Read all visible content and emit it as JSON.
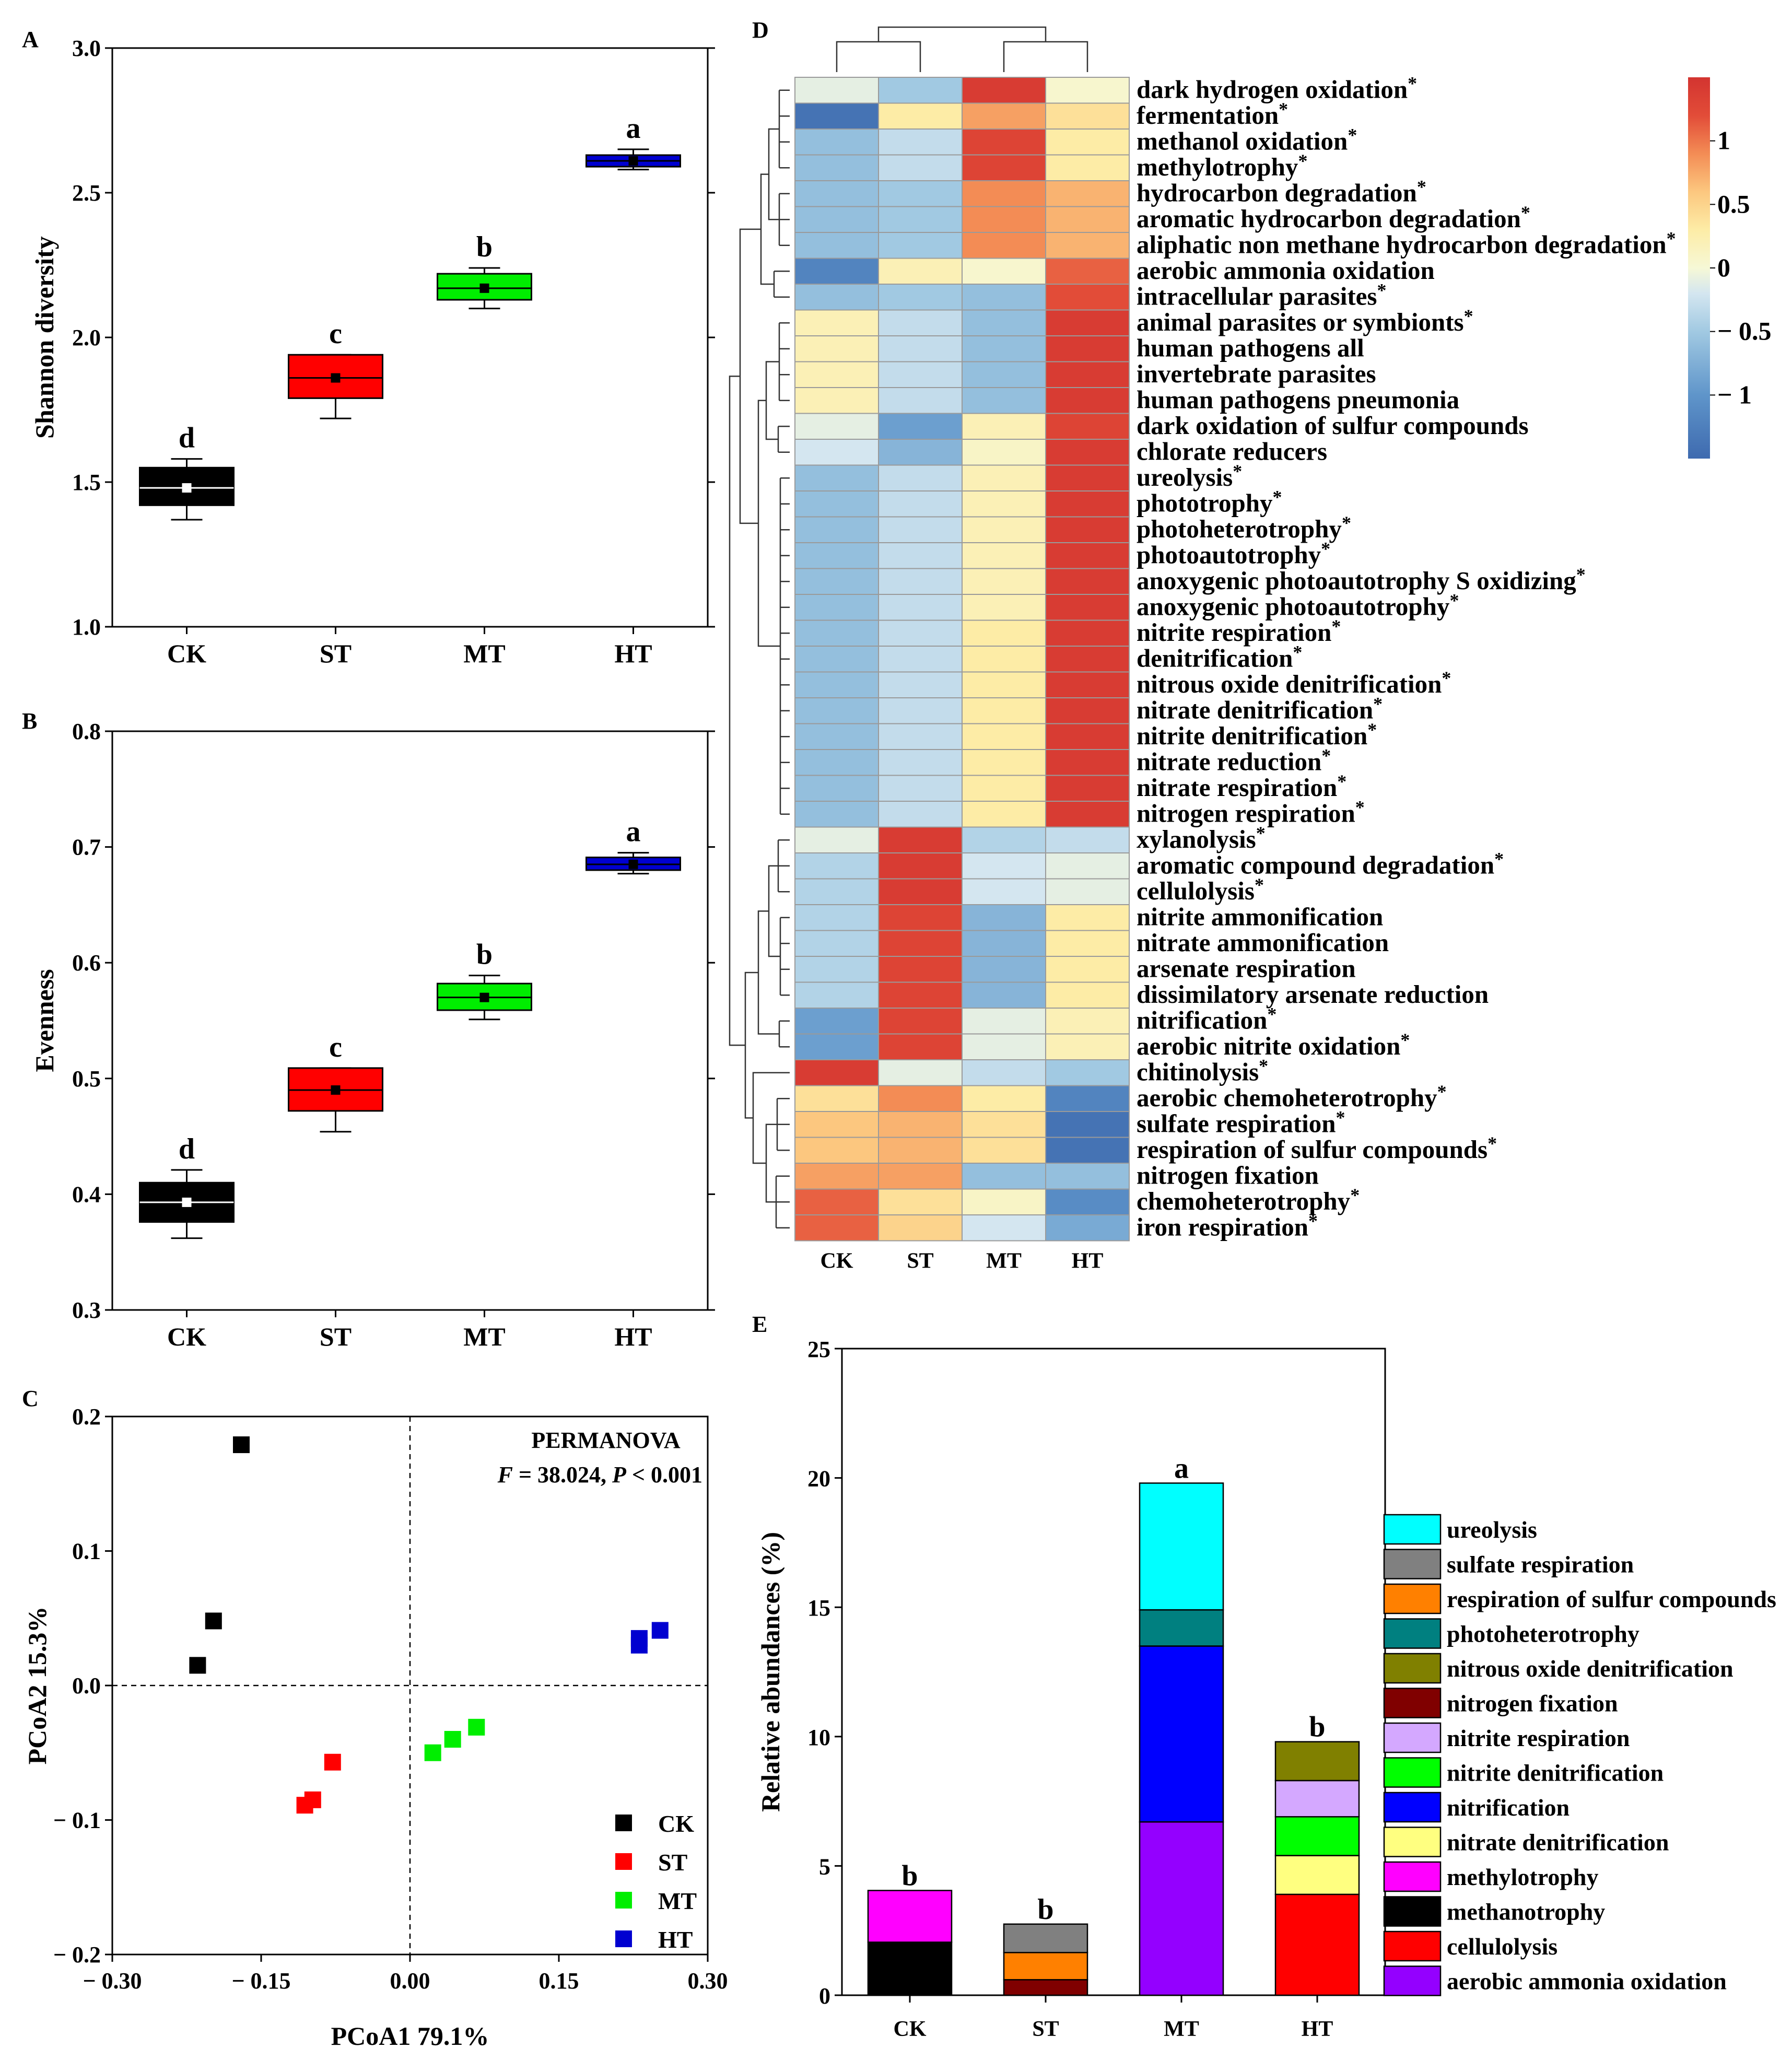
{
  "panels": {
    "A": {
      "label": "A",
      "ylabel": "Shannon diversity",
      "ylim": [
        1.0,
        3.0
      ],
      "yticks": [
        "1.0",
        "1.5",
        "2.0",
        "2.5",
        "3.0"
      ],
      "categories": [
        "CK",
        "ST",
        "MT",
        "HT"
      ]
    },
    "B": {
      "label": "B",
      "ylabel": "Evenness",
      "ylim": [
        0.3,
        0.8
      ],
      "yticks": [
        "0.3",
        "0.4",
        "0.5",
        "0.6",
        "0.7",
        "0.8"
      ],
      "categories": [
        "CK",
        "ST",
        "MT",
        "HT"
      ]
    },
    "C": {
      "label": "C",
      "xlabel": "PCoA1 79.1%",
      "ylabel": "PCoA2 15.3%",
      "xticks": [
        "− 0.30",
        "− 0.15",
        "0.00",
        "0.15",
        "0.30"
      ],
      "yticks": [
        "− 0.2",
        "− 0.1",
        "0.0",
        "0.1",
        "0.2"
      ],
      "annotation_title": "PERMANOVA",
      "annotation_F": "F",
      "annotation_stats": " = 38.024, ",
      "annotation_P": "P",
      "annotation_p_value": " < 0.001"
    },
    "D": {
      "label": "D"
    },
    "E": {
      "label": "E",
      "ylabel": "Relative abundances (%)",
      "yticks": [
        "0",
        "5",
        "10",
        "15",
        "20",
        "25"
      ],
      "categories": [
        "CK",
        "ST",
        "MT",
        "HT"
      ]
    }
  },
  "colors": {
    "CK": "#000000",
    "ST": "#ff0000",
    "MT": "#00ee00",
    "HT": "#0000d0"
  },
  "chart_data": [
    {
      "id": "A",
      "type": "box",
      "categories": [
        "CK",
        "ST",
        "MT",
        "HT"
      ],
      "ylabel": "Shannon diversity",
      "ylim": [
        1.0,
        3.0
      ],
      "boxes": [
        {
          "category": "CK",
          "q1": 1.42,
          "q3": 1.55,
          "median": 1.48,
          "mean": 1.48,
          "min": 1.37,
          "max": 1.58,
          "sig": "d"
        },
        {
          "category": "ST",
          "q1": 1.79,
          "q3": 1.94,
          "median": 1.86,
          "mean": 1.86,
          "min": 1.72,
          "max": 1.94,
          "sig": "c"
        },
        {
          "category": "MT",
          "q1": 2.13,
          "q3": 2.22,
          "median": 2.17,
          "mean": 2.17,
          "min": 2.1,
          "max": 2.24,
          "sig": "b"
        },
        {
          "category": "HT",
          "q1": 2.59,
          "q3": 2.63,
          "median": 2.61,
          "mean": 2.61,
          "min": 2.58,
          "max": 2.65,
          "sig": "a"
        }
      ]
    },
    {
      "id": "B",
      "type": "box",
      "categories": [
        "CK",
        "ST",
        "MT",
        "HT"
      ],
      "ylabel": "Evenness",
      "ylim": [
        0.3,
        0.8
      ],
      "boxes": [
        {
          "category": "CK",
          "q1": 0.376,
          "q3": 0.41,
          "median": 0.393,
          "mean": 0.393,
          "min": 0.362,
          "max": 0.421,
          "sig": "d"
        },
        {
          "category": "ST",
          "q1": 0.472,
          "q3": 0.509,
          "median": 0.49,
          "mean": 0.49,
          "min": 0.454,
          "max": 0.509,
          "sig": "c"
        },
        {
          "category": "MT",
          "q1": 0.559,
          "q3": 0.582,
          "median": 0.57,
          "mean": 0.57,
          "min": 0.551,
          "max": 0.589,
          "sig": "b"
        },
        {
          "category": "HT",
          "q1": 0.68,
          "q3": 0.691,
          "median": 0.685,
          "mean": 0.685,
          "min": 0.677,
          "max": 0.695,
          "sig": "a"
        }
      ]
    },
    {
      "id": "C",
      "type": "scatter",
      "xlabel": "PCoA1 79.1%",
      "ylabel": "PCoA2 15.3%",
      "xlim": [
        -0.3,
        0.3
      ],
      "ylim": [
        -0.2,
        0.2
      ],
      "legend_position": "bottom-right",
      "series": [
        {
          "name": "CK",
          "points": [
            [
              -0.17,
              0.179
            ],
            [
              -0.198,
              0.048
            ],
            [
              -0.214,
              0.015
            ]
          ]
        },
        {
          "name": "ST",
          "points": [
            [
              -0.078,
              -0.057
            ],
            [
              -0.098,
              -0.085
            ],
            [
              -0.106,
              -0.089
            ]
          ]
        },
        {
          "name": "MT",
          "points": [
            [
              0.023,
              -0.05
            ],
            [
              0.043,
              -0.04
            ],
            [
              0.067,
              -0.031
            ]
          ]
        },
        {
          "name": "HT",
          "points": [
            [
              0.231,
              0.03
            ],
            [
              0.231,
              0.035
            ],
            [
              0.252,
              0.041
            ]
          ]
        }
      ]
    },
    {
      "id": "D",
      "type": "heatmap",
      "columns": [
        "CK",
        "ST",
        "MT",
        "HT"
      ],
      "colorbar_ticks": [
        "1",
        "0.5",
        "0",
        "− 0.5",
        "− 1"
      ],
      "colorbar_values": [
        1,
        0.5,
        0,
        -0.5,
        -1
      ],
      "vmin": -1.5,
      "vmax": 1.5,
      "rows": [
        {
          "name": "dark hydrogen oxidation",
          "star": true,
          "values": [
            -0.1,
            -0.5,
            1.4,
            0.05
          ]
        },
        {
          "name": "fermentation",
          "star": true,
          "values": [
            -1.4,
            0.3,
            0.8,
            0.4
          ]
        },
        {
          "name": "methanol oxidation",
          "star": true,
          "values": [
            -0.6,
            -0.3,
            1.3,
            0.3
          ]
        },
        {
          "name": "methylotrophy",
          "star": true,
          "values": [
            -0.6,
            -0.3,
            1.3,
            0.3
          ]
        },
        {
          "name": "hydrocarbon degradation",
          "star": true,
          "values": [
            -0.6,
            -0.5,
            0.9,
            0.7
          ]
        },
        {
          "name": "aromatic hydrocarbon degradation",
          "star": true,
          "values": [
            -0.6,
            -0.5,
            0.9,
            0.7
          ]
        },
        {
          "name": "aliphatic non methane hydrocarbon degradation",
          "star": true,
          "values": [
            -0.6,
            -0.5,
            0.9,
            0.7
          ]
        },
        {
          "name": "aerobic ammonia oxidation",
          "star": false,
          "values": [
            -1.2,
            0.2,
            0.05,
            1.1
          ]
        },
        {
          "name": "intracellular parasites",
          "star": true,
          "values": [
            -0.6,
            -0.5,
            -0.6,
            1.2
          ]
        },
        {
          "name": "animal parasites or symbionts",
          "star": true,
          "values": [
            0.2,
            -0.3,
            -0.6,
            1.4
          ]
        },
        {
          "name": "human pathogens all",
          "star": false,
          "values": [
            0.2,
            -0.3,
            -0.6,
            1.4
          ]
        },
        {
          "name": "invertebrate parasites",
          "star": false,
          "values": [
            0.2,
            -0.3,
            -0.6,
            1.4
          ]
        },
        {
          "name": "human pathogens pneumonia",
          "star": false,
          "values": [
            0.2,
            -0.3,
            -0.6,
            1.4
          ]
        },
        {
          "name": "dark oxidation of sulfur compounds",
          "star": false,
          "values": [
            -0.1,
            -0.9,
            0.2,
            1.3
          ]
        },
        {
          "name": "chlorate reducers",
          "star": false,
          "values": [
            -0.2,
            -0.7,
            0.1,
            1.4
          ]
        },
        {
          "name": "ureolysis",
          "star": true,
          "values": [
            -0.6,
            -0.3,
            0.2,
            1.4
          ]
        },
        {
          "name": "phototrophy",
          "star": true,
          "values": [
            -0.6,
            -0.3,
            0.2,
            1.4
          ]
        },
        {
          "name": "photoheterotrophy",
          "star": true,
          "values": [
            -0.6,
            -0.3,
            0.2,
            1.4
          ]
        },
        {
          "name": "photoautotrophy",
          "star": true,
          "values": [
            -0.6,
            -0.3,
            0.2,
            1.4
          ]
        },
        {
          "name": "anoxygenic photoautotrophy S oxidizing",
          "star": true,
          "values": [
            -0.6,
            -0.3,
            0.2,
            1.4
          ]
        },
        {
          "name": "anoxygenic photoautotrophy",
          "star": true,
          "values": [
            -0.6,
            -0.3,
            0.2,
            1.4
          ]
        },
        {
          "name": "nitrite respiration",
          "star": true,
          "values": [
            -0.6,
            -0.3,
            0.3,
            1.4
          ]
        },
        {
          "name": "denitrification",
          "star": true,
          "values": [
            -0.6,
            -0.3,
            0.3,
            1.4
          ]
        },
        {
          "name": "nitrous oxide denitrification",
          "star": true,
          "values": [
            -0.6,
            -0.3,
            0.3,
            1.4
          ]
        },
        {
          "name": "nitrate denitrification",
          "star": true,
          "values": [
            -0.6,
            -0.3,
            0.3,
            1.4
          ]
        },
        {
          "name": "nitrite denitrification",
          "star": true,
          "values": [
            -0.6,
            -0.3,
            0.3,
            1.4
          ]
        },
        {
          "name": "nitrate reduction",
          "star": true,
          "values": [
            -0.6,
            -0.3,
            0.3,
            1.4
          ]
        },
        {
          "name": "nitrate respiration",
          "star": true,
          "values": [
            -0.6,
            -0.3,
            0.3,
            1.4
          ]
        },
        {
          "name": "nitrogen respiration",
          "star": true,
          "values": [
            -0.6,
            -0.3,
            0.3,
            1.4
          ]
        },
        {
          "name": "xylanolysis",
          "star": true,
          "values": [
            -0.1,
            1.4,
            -0.4,
            -0.3
          ]
        },
        {
          "name": "aromatic compound degradation",
          "star": true,
          "values": [
            -0.4,
            1.4,
            -0.2,
            -0.1
          ]
        },
        {
          "name": "cellulolysis",
          "star": true,
          "values": [
            -0.4,
            1.4,
            -0.2,
            -0.1
          ]
        },
        {
          "name": "nitrite ammonification",
          "star": false,
          "values": [
            -0.4,
            1.3,
            -0.7,
            0.3
          ]
        },
        {
          "name": "nitrate ammonification",
          "star": false,
          "values": [
            -0.4,
            1.3,
            -0.7,
            0.3
          ]
        },
        {
          "name": "arsenate respiration",
          "star": false,
          "values": [
            -0.4,
            1.3,
            -0.7,
            0.3
          ]
        },
        {
          "name": "dissimilatory arsenate reduction",
          "star": false,
          "values": [
            -0.4,
            1.3,
            -0.7,
            0.3
          ]
        },
        {
          "name": "nitrification",
          "star": true,
          "values": [
            -0.9,
            1.3,
            -0.1,
            0.2
          ]
        },
        {
          "name": "aerobic nitrite oxidation",
          "star": true,
          "values": [
            -0.9,
            1.3,
            -0.1,
            0.2
          ]
        },
        {
          "name": "chitinolysis",
          "star": true,
          "values": [
            1.4,
            -0.1,
            -0.3,
            -0.5
          ]
        },
        {
          "name": "aerobic chemoheterotrophy",
          "star": true,
          "values": [
            0.4,
            0.9,
            0.3,
            -1.2
          ]
        },
        {
          "name": "sulfate respiration",
          "star": true,
          "values": [
            0.6,
            0.7,
            0.4,
            -1.4
          ]
        },
        {
          "name": "respiration of sulfur compounds",
          "star": true,
          "values": [
            0.6,
            0.7,
            0.4,
            -1.4
          ]
        },
        {
          "name": "nitrogen fixation",
          "star": false,
          "values": [
            0.8,
            0.8,
            -0.6,
            -0.6
          ]
        },
        {
          "name": "chemoheterotrophy",
          "star": true,
          "values": [
            1.1,
            0.4,
            0.1,
            -1.1
          ]
        },
        {
          "name": "iron respiration",
          "star": true,
          "values": [
            1.1,
            0.5,
            -0.2,
            -0.8
          ]
        }
      ]
    },
    {
      "id": "E",
      "type": "stacked_bar",
      "categories": [
        "CK",
        "ST",
        "MT",
        "HT"
      ],
      "ylabel": "Relative abundances (%)",
      "ylim": [
        0,
        25
      ],
      "sig": [
        "b",
        "b",
        "a",
        "b"
      ],
      "series": [
        {
          "name": "aerobic ammonia oxidation",
          "color": "#9400ff",
          "values": [
            0,
            0,
            6.7,
            0
          ]
        },
        {
          "name": "cellulolysis",
          "color": "#ff0000",
          "values": [
            0,
            0,
            0,
            3.9
          ]
        },
        {
          "name": "methanotrophy",
          "color": "#000000",
          "values": [
            2.05,
            0,
            0,
            0
          ]
        },
        {
          "name": "methylotrophy",
          "color": "#ff00ff",
          "values": [
            2.0,
            0,
            0,
            0
          ]
        },
        {
          "name": "nitrate denitrification",
          "color": "#ffff80",
          "values": [
            0,
            0,
            0,
            1.5
          ]
        },
        {
          "name": "nitrification",
          "color": "#0000ff",
          "values": [
            0,
            0,
            6.8,
            0
          ]
        },
        {
          "name": "nitrite denitrification",
          "color": "#00ff00",
          "values": [
            0,
            0,
            0,
            1.5
          ]
        },
        {
          "name": "nitrite respiration",
          "color": "#d4a8ff",
          "values": [
            0,
            0,
            0,
            1.4
          ]
        },
        {
          "name": "nitrogen fixation",
          "color": "#800000",
          "values": [
            0,
            0.6,
            0,
            0
          ]
        },
        {
          "name": "nitrous oxide denitrification",
          "color": "#808000",
          "values": [
            0,
            0,
            0,
            1.5
          ]
        },
        {
          "name": "photoheterotrophy",
          "color": "#008080",
          "values": [
            0,
            0,
            1.4,
            0
          ]
        },
        {
          "name": "respiration of sulfur compounds",
          "color": "#ff8000",
          "values": [
            0,
            1.05,
            0,
            0
          ]
        },
        {
          "name": "sulfate respiration",
          "color": "#808080",
          "values": [
            0,
            1.1,
            0,
            0
          ]
        },
        {
          "name": "ureolysis",
          "color": "#00ffff",
          "values": [
            0,
            0,
            4.9,
            0
          ]
        }
      ],
      "legend_order": [
        "ureolysis",
        "sulfate respiration",
        "respiration of sulfur compounds",
        "photoheterotrophy",
        "nitrous oxide denitrification",
        "nitrogen fixation",
        "nitrite respiration",
        "nitrite denitrification",
        "nitrification",
        "nitrate denitrification",
        "methylotrophy",
        "methanotrophy",
        "cellulolysis",
        "aerobic ammonia oxidation"
      ]
    }
  ]
}
